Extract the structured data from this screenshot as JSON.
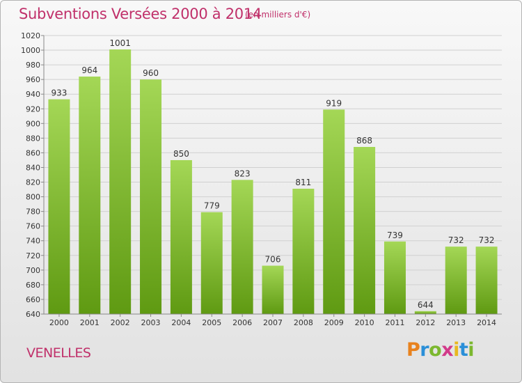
{
  "title": "Subventions Versées 2000 à 2014",
  "subtitle": "(en milliers d'€)",
  "commune": "VENELLES",
  "logo": {
    "letters": [
      "P",
      "r",
      "o",
      "x",
      "i",
      "t",
      "i"
    ],
    "colors": [
      "#e8821e",
      "#2a8fd8",
      "#7cb82f",
      "#d23a8a",
      "#e8b820",
      "#2a8fd8",
      "#7cb82f"
    ]
  },
  "colors": {
    "bar_light": "#a4d756",
    "bar_dark": "#5f9a12",
    "axis": "#888888",
    "grid": "#d0d0d0",
    "text": "#333333",
    "title": "#c0306a"
  },
  "chart_data": {
    "type": "bar",
    "categories": [
      "2000",
      "2001",
      "2002",
      "2003",
      "2004",
      "2005",
      "2006",
      "2007",
      "2008",
      "2009",
      "2010",
      "2011",
      "2012",
      "2013",
      "2014"
    ],
    "values": [
      933,
      964,
      1001,
      960,
      850,
      779,
      823,
      706,
      811,
      919,
      868,
      739,
      644,
      732,
      732
    ],
    "title": "Subventions Versées 2000 à 2014",
    "ylim": [
      640,
      1020
    ],
    "ytick_step": 20,
    "grid": true
  }
}
